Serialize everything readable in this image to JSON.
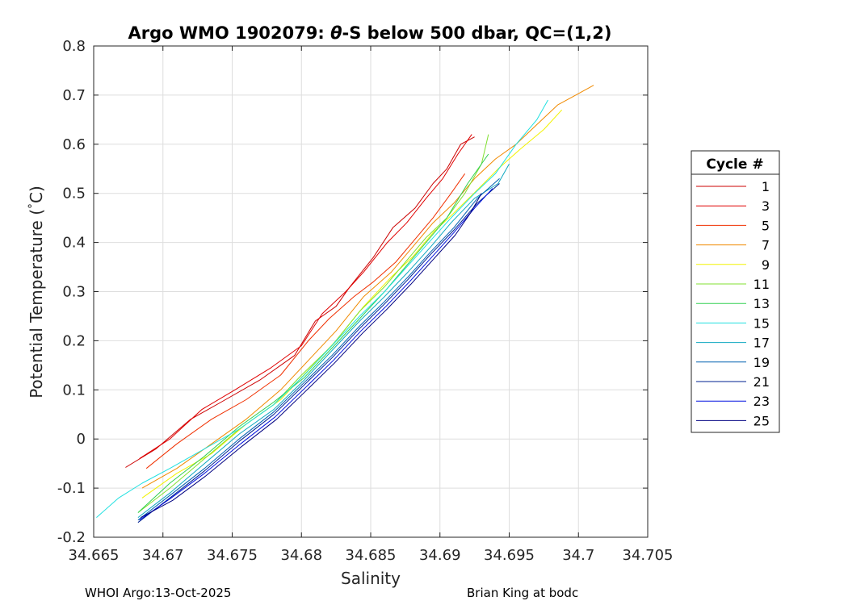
{
  "footer": {
    "left": "WHOI Argo:13-Oct-2025",
    "right": "Brian King at bodc"
  },
  "chart_data": {
    "type": "line",
    "title_prefix": "Argo WMO 1902079: ",
    "title_theta": "θ",
    "title_suffix": "-S below 500 dbar,  QC=(1,2)",
    "xlabel": "Salinity",
    "ylabel_main": "Potential Temperature (",
    "ylabel_deg": "°",
    "ylabel_end": "C)",
    "xlim": [
      34.665,
      34.705
    ],
    "ylim": [
      -0.2,
      0.8
    ],
    "xticks": [
      34.665,
      34.67,
      34.675,
      34.68,
      34.685,
      34.69,
      34.695,
      34.7,
      34.705
    ],
    "xtick_labels": [
      "34.665",
      "34.67",
      "34.675",
      "34.68",
      "34.685",
      "34.69",
      "34.695",
      "34.7",
      "34.705"
    ],
    "yticks": [
      -0.2,
      -0.1,
      0,
      0.1,
      0.2,
      0.3,
      0.4,
      0.5,
      0.6,
      0.7,
      0.8
    ],
    "ytick_labels": [
      "-0.2",
      "-0.1",
      "0",
      "0.1",
      "0.2",
      "0.3",
      "0.4",
      "0.5",
      "0.6",
      "0.7",
      "0.8"
    ],
    "grid": true,
    "legend": {
      "title": "Cycle #",
      "placement": "right-outside",
      "entries": [
        {
          "label": "1",
          "color": "#cc0000"
        },
        {
          "label": "3",
          "color": "#e00000"
        },
        {
          "label": "5",
          "color": "#f03000"
        },
        {
          "label": "7",
          "color": "#f08a00"
        },
        {
          "label": "9",
          "color": "#f2f200"
        },
        {
          "label": "11",
          "color": "#80e030"
        },
        {
          "label": "13",
          "color": "#30d050"
        },
        {
          "label": "15",
          "color": "#20e0e0"
        },
        {
          "label": "17",
          "color": "#10a8c0"
        },
        {
          "label": "19",
          "color": "#0060b0"
        },
        {
          "label": "21",
          "color": "#002090"
        },
        {
          "label": "23",
          "color": "#0010e0"
        },
        {
          "label": "25",
          "color": "#000080"
        }
      ]
    },
    "series": [
      {
        "color": "#cc0000",
        "points": [
          [
            34.6673,
            -0.058
          ],
          [
            34.6695,
            -0.02
          ],
          [
            34.672,
            0.04
          ],
          [
            34.6742,
            0.075
          ],
          [
            34.677,
            0.12
          ],
          [
            34.6795,
            0.17
          ],
          [
            34.681,
            0.24
          ],
          [
            34.6825,
            0.27
          ],
          [
            34.6835,
            0.31
          ],
          [
            34.6852,
            0.37
          ],
          [
            34.6866,
            0.43
          ],
          [
            34.6882,
            0.47
          ],
          [
            34.6895,
            0.52
          ],
          [
            34.6905,
            0.55
          ],
          [
            34.6915,
            0.6
          ],
          [
            34.6925,
            0.615
          ]
        ]
      },
      {
        "color": "#e00000",
        "points": [
          [
            34.6683,
            -0.04
          ],
          [
            34.6705,
            0.0
          ],
          [
            34.6728,
            0.06
          ],
          [
            34.6752,
            0.1
          ],
          [
            34.6778,
            0.145
          ],
          [
            34.68,
            0.19
          ],
          [
            34.6815,
            0.255
          ],
          [
            34.6832,
            0.3
          ],
          [
            34.6845,
            0.34
          ],
          [
            34.6862,
            0.4
          ],
          [
            34.6876,
            0.44
          ],
          [
            34.689,
            0.49
          ],
          [
            34.6902,
            0.53
          ],
          [
            34.6913,
            0.58
          ],
          [
            34.6923,
            0.62
          ]
        ]
      },
      {
        "color": "#f03000",
        "points": [
          [
            34.6688,
            -0.06
          ],
          [
            34.671,
            -0.01
          ],
          [
            34.6735,
            0.04
          ],
          [
            34.676,
            0.08
          ],
          [
            34.6785,
            0.13
          ],
          [
            34.6805,
            0.2
          ],
          [
            34.682,
            0.245
          ],
          [
            34.6838,
            0.29
          ],
          [
            34.6852,
            0.32
          ],
          [
            34.6868,
            0.36
          ],
          [
            34.688,
            0.4
          ],
          [
            34.6895,
            0.45
          ],
          [
            34.6908,
            0.5
          ],
          [
            34.6918,
            0.54
          ]
        ]
      },
      {
        "color": "#f08a00",
        "points": [
          [
            34.6685,
            -0.1
          ],
          [
            34.671,
            -0.06
          ],
          [
            34.6735,
            -0.01
          ],
          [
            34.676,
            0.04
          ],
          [
            34.6785,
            0.1
          ],
          [
            34.6805,
            0.16
          ],
          [
            34.6825,
            0.22
          ],
          [
            34.6845,
            0.29
          ],
          [
            34.6865,
            0.34
          ],
          [
            34.688,
            0.39
          ],
          [
            34.6895,
            0.44
          ],
          [
            34.691,
            0.48
          ],
          [
            34.6925,
            0.53
          ],
          [
            34.694,
            0.57
          ],
          [
            34.6955,
            0.6
          ],
          [
            34.697,
            0.64
          ],
          [
            34.6985,
            0.68
          ],
          [
            34.6998,
            0.7
          ],
          [
            34.7011,
            0.72
          ]
        ]
      },
      {
        "color": "#f2f200",
        "points": [
          [
            34.6685,
            -0.12
          ],
          [
            34.671,
            -0.07
          ],
          [
            34.6735,
            -0.03
          ],
          [
            34.676,
            0.03
          ],
          [
            34.6785,
            0.08
          ],
          [
            34.6805,
            0.14
          ],
          [
            34.6825,
            0.2
          ],
          [
            34.6845,
            0.27
          ],
          [
            34.6865,
            0.33
          ],
          [
            34.688,
            0.37
          ],
          [
            34.6895,
            0.42
          ],
          [
            34.691,
            0.46
          ],
          [
            34.6928,
            0.51
          ],
          [
            34.6942,
            0.55
          ],
          [
            34.6958,
            0.59
          ],
          [
            34.6975,
            0.63
          ],
          [
            34.6988,
            0.67
          ]
        ]
      },
      {
        "color": "#80e030",
        "points": [
          [
            34.6682,
            -0.15
          ],
          [
            34.6705,
            -0.1
          ],
          [
            34.673,
            -0.04
          ],
          [
            34.6755,
            0.02
          ],
          [
            34.678,
            0.07
          ],
          [
            34.68,
            0.13
          ],
          [
            34.6822,
            0.19
          ],
          [
            34.6842,
            0.26
          ],
          [
            34.686,
            0.31
          ],
          [
            34.6875,
            0.36
          ],
          [
            34.689,
            0.41
          ],
          [
            34.6905,
            0.45
          ],
          [
            34.6918,
            0.5
          ],
          [
            34.693,
            0.56
          ],
          [
            34.6935,
            0.62
          ]
        ]
      },
      {
        "color": "#30d050",
        "points": [
          [
            34.6682,
            -0.15
          ],
          [
            34.6705,
            -0.09
          ],
          [
            34.673,
            -0.035
          ],
          [
            34.6755,
            0.025
          ],
          [
            34.678,
            0.075
          ],
          [
            34.6802,
            0.125
          ],
          [
            34.6822,
            0.185
          ],
          [
            34.6842,
            0.245
          ],
          [
            34.686,
            0.3
          ],
          [
            34.6875,
            0.35
          ],
          [
            34.689,
            0.4
          ],
          [
            34.6905,
            0.45
          ],
          [
            34.692,
            0.52
          ],
          [
            34.6935,
            0.58
          ]
        ]
      },
      {
        "color": "#20e0e0",
        "points": [
          [
            34.6652,
            -0.16
          ],
          [
            34.6668,
            -0.12
          ],
          [
            34.6685,
            -0.09
          ],
          [
            34.6705,
            -0.06
          ],
          [
            34.673,
            -0.02
          ],
          [
            34.6755,
            0.02
          ],
          [
            34.678,
            0.07
          ],
          [
            34.6802,
            0.13
          ],
          [
            34.6822,
            0.19
          ],
          [
            34.6842,
            0.25
          ],
          [
            34.686,
            0.3
          ],
          [
            34.6876,
            0.35
          ],
          [
            34.6892,
            0.4
          ],
          [
            34.6908,
            0.45
          ],
          [
            34.6925,
            0.5
          ],
          [
            34.694,
            0.54
          ],
          [
            34.6955,
            0.6
          ],
          [
            34.697,
            0.65
          ],
          [
            34.6978,
            0.69
          ]
        ]
      },
      {
        "color": "#10a8c0",
        "points": [
          [
            34.6682,
            -0.16
          ],
          [
            34.6705,
            -0.11
          ],
          [
            34.673,
            -0.05
          ],
          [
            34.6755,
            0.01
          ],
          [
            34.678,
            0.06
          ],
          [
            34.6802,
            0.12
          ],
          [
            34.6822,
            0.18
          ],
          [
            34.6842,
            0.24
          ],
          [
            34.686,
            0.29
          ],
          [
            34.6877,
            0.34
          ],
          [
            34.6893,
            0.39
          ],
          [
            34.6908,
            0.44
          ],
          [
            34.6925,
            0.49
          ],
          [
            34.6942,
            0.52
          ],
          [
            34.695,
            0.56
          ]
        ]
      },
      {
        "color": "#0060b0",
        "points": [
          [
            34.6682,
            -0.165
          ],
          [
            34.6705,
            -0.115
          ],
          [
            34.673,
            -0.06
          ],
          [
            34.6755,
            0.0
          ],
          [
            34.678,
            0.055
          ],
          [
            34.6802,
            0.115
          ],
          [
            34.6822,
            0.17
          ],
          [
            34.6842,
            0.23
          ],
          [
            34.686,
            0.28
          ],
          [
            34.6877,
            0.33
          ],
          [
            34.6893,
            0.38
          ],
          [
            34.691,
            0.43
          ],
          [
            34.6927,
            0.49
          ],
          [
            34.6943,
            0.53
          ]
        ]
      },
      {
        "color": "#002090",
        "points": [
          [
            34.6682,
            -0.17
          ],
          [
            34.6705,
            -0.12
          ],
          [
            34.673,
            -0.065
          ],
          [
            34.6755,
            -0.005
          ],
          [
            34.678,
            0.05
          ],
          [
            34.6802,
            0.11
          ],
          [
            34.6822,
            0.165
          ],
          [
            34.6842,
            0.225
          ],
          [
            34.686,
            0.275
          ],
          [
            34.6877,
            0.325
          ],
          [
            34.6893,
            0.375
          ],
          [
            34.691,
            0.425
          ],
          [
            34.6927,
            0.48
          ],
          [
            34.6943,
            0.52
          ]
        ]
      },
      {
        "color": "#0010e0",
        "points": [
          [
            34.6683,
            -0.165
          ],
          [
            34.6706,
            -0.12
          ],
          [
            34.673,
            -0.07
          ],
          [
            34.6756,
            -0.01
          ],
          [
            34.6781,
            0.045
          ],
          [
            34.6803,
            0.105
          ],
          [
            34.6823,
            0.16
          ],
          [
            34.6843,
            0.22
          ],
          [
            34.6861,
            0.27
          ],
          [
            34.6878,
            0.32
          ],
          [
            34.6894,
            0.37
          ],
          [
            34.691,
            0.42
          ],
          [
            34.6925,
            0.47
          ],
          [
            34.6938,
            0.51
          ]
        ]
      },
      {
        "color": "#000080",
        "points": [
          [
            34.6684,
            -0.16
          ],
          [
            34.6707,
            -0.125
          ],
          [
            34.6731,
            -0.075
          ],
          [
            34.6757,
            -0.015
          ],
          [
            34.6782,
            0.04
          ],
          [
            34.6804,
            0.1
          ],
          [
            34.6824,
            0.155
          ],
          [
            34.6844,
            0.215
          ],
          [
            34.6862,
            0.265
          ],
          [
            34.6879,
            0.315
          ],
          [
            34.6895,
            0.365
          ],
          [
            34.6911,
            0.415
          ],
          [
            34.6922,
            0.46
          ],
          [
            34.693,
            0.5
          ]
        ]
      }
    ]
  }
}
